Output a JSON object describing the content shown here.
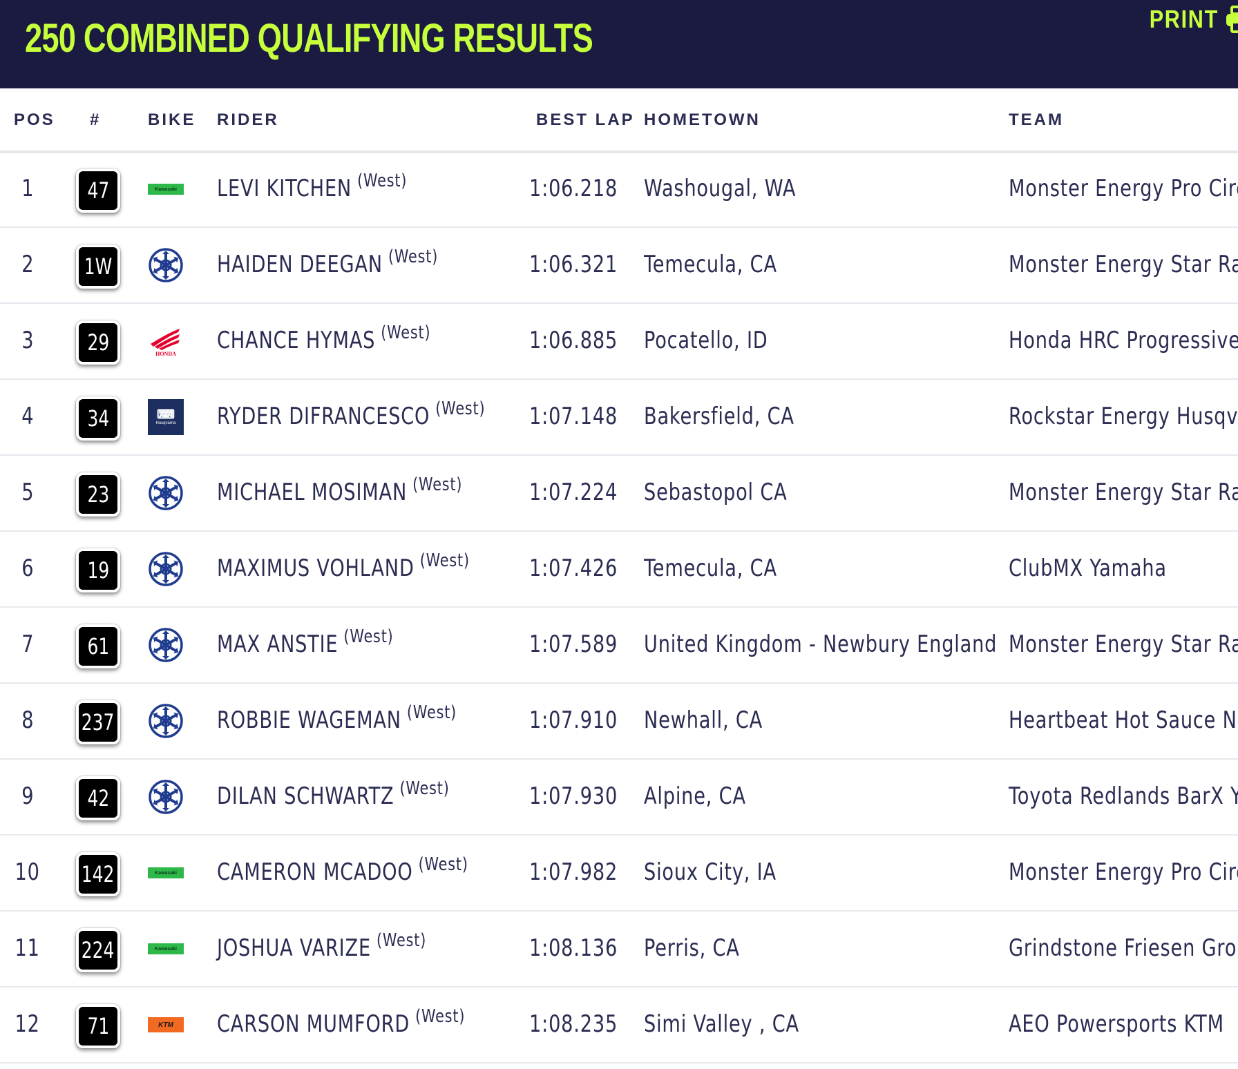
{
  "header": {
    "title": "250 COMBINED QUALIFYING RESULTS",
    "print_label": "PRINT",
    "bg_color": "#1b1a40",
    "accent_color": "#c6ff3c",
    "print_icon": "printer-icon"
  },
  "columns": {
    "pos": "POS",
    "num": "#",
    "bike": "BIKE",
    "rider": "RIDER",
    "best_lap": "BEST LAP",
    "hometown": "HOMETOWN",
    "team": "TEAM"
  },
  "brand_text": {
    "kawasaki": "Kawasaki",
    "honda": "HONDA",
    "husqvarna": "Husqvarna",
    "ktm": "KTM"
  },
  "rows": [
    {
      "pos": "1",
      "num": "47",
      "bike": "kawasaki-logo",
      "rider": "LEVI KITCHEN",
      "region": "(West)",
      "lap": "1:06.218",
      "home": "Washougal, WA",
      "team": "Monster Energy Pro Circu"
    },
    {
      "pos": "2",
      "num": "1W",
      "bike": "yamaha-logo",
      "rider": "HAIDEN DEEGAN",
      "region": "(West)",
      "lap": "1:06.321",
      "home": "Temecula, CA",
      "team": "Monster Energy Star Raci"
    },
    {
      "pos": "3",
      "num": "29",
      "bike": "honda-logo",
      "rider": "CHANCE HYMAS",
      "region": "(West)",
      "lap": "1:06.885",
      "home": "Pocatello, ID",
      "team": "Honda HRC Progressive"
    },
    {
      "pos": "4",
      "num": "34",
      "bike": "husqvarna-logo",
      "rider": "RYDER DIFRANCESCO",
      "region": "(West)",
      "lap": "1:07.148",
      "home": "Bakersfield, CA",
      "team": "Rockstar Energy Husqvar"
    },
    {
      "pos": "5",
      "num": "23",
      "bike": "yamaha-logo",
      "rider": "MICHAEL MOSIMAN",
      "region": "(West)",
      "lap": "1:07.224",
      "home": "Sebastopol CA",
      "team": "Monster Energy Star Raci"
    },
    {
      "pos": "6",
      "num": "19",
      "bike": "yamaha-logo",
      "rider": "MAXIMUS VOHLAND",
      "region": "(West)",
      "lap": "1:07.426",
      "home": "Temecula, CA",
      "team": "ClubMX Yamaha"
    },
    {
      "pos": "7",
      "num": "61",
      "bike": "yamaha-logo",
      "rider": "MAX ANSTIE",
      "region": "(West)",
      "lap": "1:07.589",
      "home": "United Kingdom - Newbury England",
      "team": "Monster Energy Star Raci"
    },
    {
      "pos": "8",
      "num": "237",
      "bike": "yamaha-logo",
      "rider": "ROBBIE WAGEMAN",
      "region": "(West)",
      "lap": "1:07.910",
      "home": "Newhall, CA",
      "team": "Heartbeat Hot Sauce Nar"
    },
    {
      "pos": "9",
      "num": "42",
      "bike": "yamaha-logo",
      "rider": "DILAN SCHWARTZ",
      "region": "(West)",
      "lap": "1:07.930",
      "home": "Alpine, CA",
      "team": "Toyota Redlands BarX Yar"
    },
    {
      "pos": "10",
      "num": "142",
      "bike": "kawasaki-logo",
      "rider": "CAMERON MCADOO",
      "region": "(West)",
      "lap": "1:07.982",
      "home": "Sioux City, IA",
      "team": "Monster Energy Pro Circu"
    },
    {
      "pos": "11",
      "num": "224",
      "bike": "kawasaki-logo",
      "rider": "JOSHUA VARIZE",
      "region": "(West)",
      "lap": "1:08.136",
      "home": "Perris, CA",
      "team": "Grindstone Friesen Grou"
    },
    {
      "pos": "12",
      "num": "71",
      "bike": "ktm-logo",
      "rider": "CARSON MUMFORD",
      "region": "(West)",
      "lap": "1:08.235",
      "home": "Simi Valley , CA",
      "team": "AEO Powersports KTM"
    }
  ]
}
